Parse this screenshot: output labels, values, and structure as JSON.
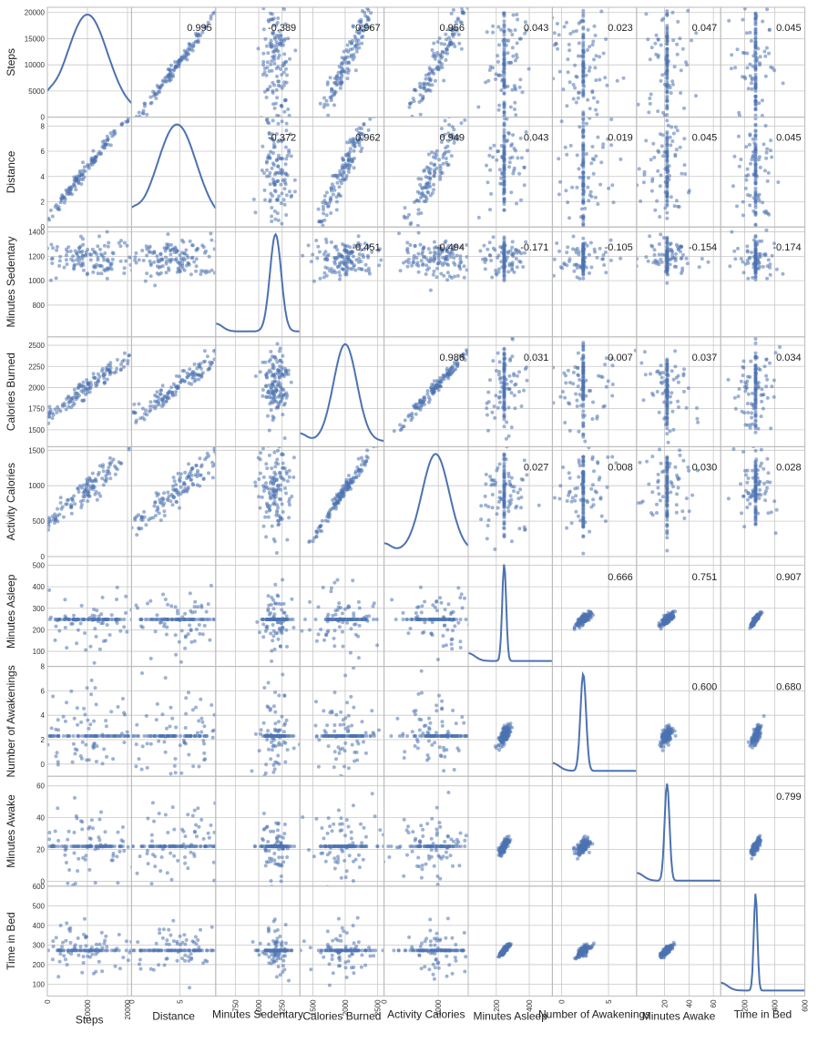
{
  "chart_data": {
    "type": "scatter",
    "subtype": "scatter-matrix",
    "title": "",
    "variables": [
      {
        "name": "Steps",
        "range": [
          0,
          21000
        ],
        "ticks": [
          0,
          5000,
          10000,
          15000,
          20000
        ],
        "xticks": [
          0,
          10000,
          20000
        ],
        "mode": 10000,
        "spread": 5000
      },
      {
        "name": "Distance",
        "range": [
          0,
          8.7
        ],
        "ticks": [
          0,
          2,
          4,
          6,
          8
        ],
        "xticks": [
          0,
          5
        ],
        "mode": 4.7,
        "spread": 2.0
      },
      {
        "name": "Minutes Sedentary",
        "range": [
          540,
          1440
        ],
        "ticks": [
          800,
          1000,
          1200,
          1400
        ],
        "xticks": [
          750,
          1000,
          1250
        ],
        "mode": 1180,
        "spread": 60
      },
      {
        "name": "Calories Burned",
        "range": [
          1300,
          2600
        ],
        "ticks": [
          1500,
          1750,
          2000,
          2250,
          2500
        ],
        "xticks": [
          1500,
          2000,
          2500
        ],
        "mode": 2000,
        "spread": 180
      },
      {
        "name": "Activity Calories",
        "range": [
          0,
          1550
        ],
        "ticks": [
          0,
          500,
          1000,
          1500
        ],
        "xticks": [
          0,
          1000
        ],
        "mode": 950,
        "spread": 250
      },
      {
        "name": "Minutes Asleep",
        "range": [
          30,
          540
        ],
        "ticks": [
          100,
          200,
          300,
          400,
          500
        ],
        "xticks": [
          200,
          400
        ],
        "mode": 248,
        "spread": 12
      },
      {
        "name": "Number of Awakenings",
        "range": [
          -1,
          8
        ],
        "ticks": [
          0,
          2,
          4,
          6,
          8
        ],
        "xticks": [
          0,
          5
        ],
        "mode": 2.3,
        "spread": 0.3
      },
      {
        "name": "Minutes Awake",
        "range": [
          -3,
          66
        ],
        "ticks": [
          0,
          20,
          40,
          60
        ],
        "xticks": [
          20,
          40,
          60
        ],
        "mode": 22,
        "spread": 2
      },
      {
        "name": "Time in Bed",
        "range": [
          40,
          600
        ],
        "ticks": [
          100,
          200,
          300,
          400,
          500,
          600
        ],
        "xticks": [
          200,
          400,
          600
        ],
        "mode": 272,
        "spread": 12
      }
    ],
    "correlations": [
      {
        "row": 0,
        "col": 1,
        "value": "0.995"
      },
      {
        "row": 0,
        "col": 2,
        "value": "-0.389"
      },
      {
        "row": 0,
        "col": 3,
        "value": "0.967"
      },
      {
        "row": 0,
        "col": 4,
        "value": "0.956"
      },
      {
        "row": 0,
        "col": 5,
        "value": "0.043"
      },
      {
        "row": 0,
        "col": 6,
        "value": "0.023"
      },
      {
        "row": 0,
        "col": 7,
        "value": "0.047"
      },
      {
        "row": 0,
        "col": 8,
        "value": "0.045"
      },
      {
        "row": 1,
        "col": 2,
        "value": "-0.372"
      },
      {
        "row": 1,
        "col": 3,
        "value": "0.962"
      },
      {
        "row": 1,
        "col": 4,
        "value": "0.949"
      },
      {
        "row": 1,
        "col": 5,
        "value": "0.043"
      },
      {
        "row": 1,
        "col": 6,
        "value": "0.019"
      },
      {
        "row": 1,
        "col": 7,
        "value": "0.045"
      },
      {
        "row": 1,
        "col": 8,
        "value": "0.045"
      },
      {
        "row": 2,
        "col": 3,
        "value": "-0.451"
      },
      {
        "row": 2,
        "col": 4,
        "value": "-0.494"
      },
      {
        "row": 2,
        "col": 5,
        "value": "-0.171"
      },
      {
        "row": 2,
        "col": 6,
        "value": "-0.105"
      },
      {
        "row": 2,
        "col": 7,
        "value": "-0.154"
      },
      {
        "row": 2,
        "col": 8,
        "value": "-0.174"
      },
      {
        "row": 3,
        "col": 4,
        "value": "0.986"
      },
      {
        "row": 3,
        "col": 5,
        "value": "0.031"
      },
      {
        "row": 3,
        "col": 6,
        "value": "0.007"
      },
      {
        "row": 3,
        "col": 7,
        "value": "0.037"
      },
      {
        "row": 3,
        "col": 8,
        "value": "0.034"
      },
      {
        "row": 4,
        "col": 5,
        "value": "0.027"
      },
      {
        "row": 4,
        "col": 6,
        "value": "0.008"
      },
      {
        "row": 4,
        "col": 7,
        "value": "0.030"
      },
      {
        "row": 4,
        "col": 8,
        "value": "0.028"
      },
      {
        "row": 5,
        "col": 6,
        "value": "0.666"
      },
      {
        "row": 5,
        "col": 7,
        "value": "0.751"
      },
      {
        "row": 5,
        "col": 8,
        "value": "0.907"
      },
      {
        "row": 6,
        "col": 7,
        "value": "0.600"
      },
      {
        "row": 6,
        "col": 8,
        "value": "0.680"
      },
      {
        "row": 7,
        "col": 8,
        "value": "0.799"
      }
    ],
    "diagonal": "kde",
    "grid": true,
    "colors": {
      "points": "#4c72b0",
      "kde": "#4c72b0",
      "grid": "#c8c8c8",
      "frame": "#bbbbbb",
      "background": "#ffffff"
    }
  }
}
